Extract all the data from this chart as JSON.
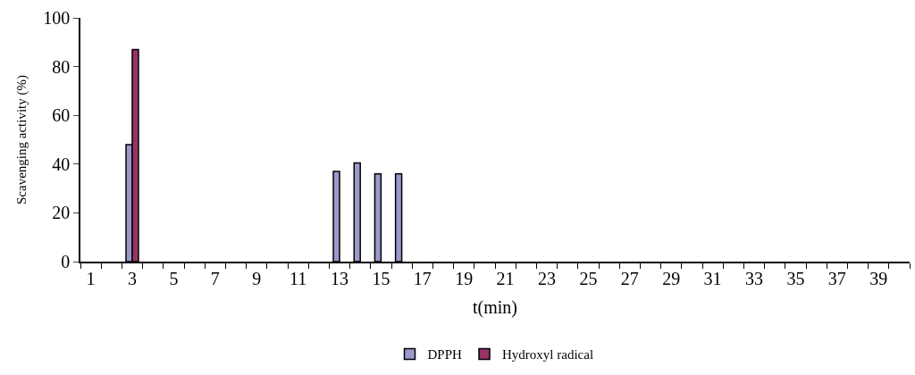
{
  "chart_data": {
    "type": "bar",
    "xlabel": "t(min)",
    "ylabel": "Scavenging activity (%)",
    "x": [
      3,
      13,
      14,
      15,
      16
    ],
    "series": [
      {
        "name": "DPPH",
        "color": "#9999cc",
        "values": [
          48,
          37,
          40.5,
          36,
          36
        ]
      },
      {
        "name": "Hydroxyl radical",
        "color": "#993366",
        "values": [
          87,
          null,
          null,
          null,
          null
        ]
      }
    ],
    "xlim": [
      0.5,
      40.5
    ],
    "xticks": [
      1,
      3,
      5,
      7,
      9,
      11,
      13,
      15,
      17,
      19,
      21,
      23,
      25,
      27,
      29,
      31,
      33,
      35,
      37,
      39
    ],
    "ylim": [
      0,
      100
    ],
    "yticks": [
      0,
      20,
      40,
      60,
      80,
      100
    ],
    "legend": "bottom"
  }
}
